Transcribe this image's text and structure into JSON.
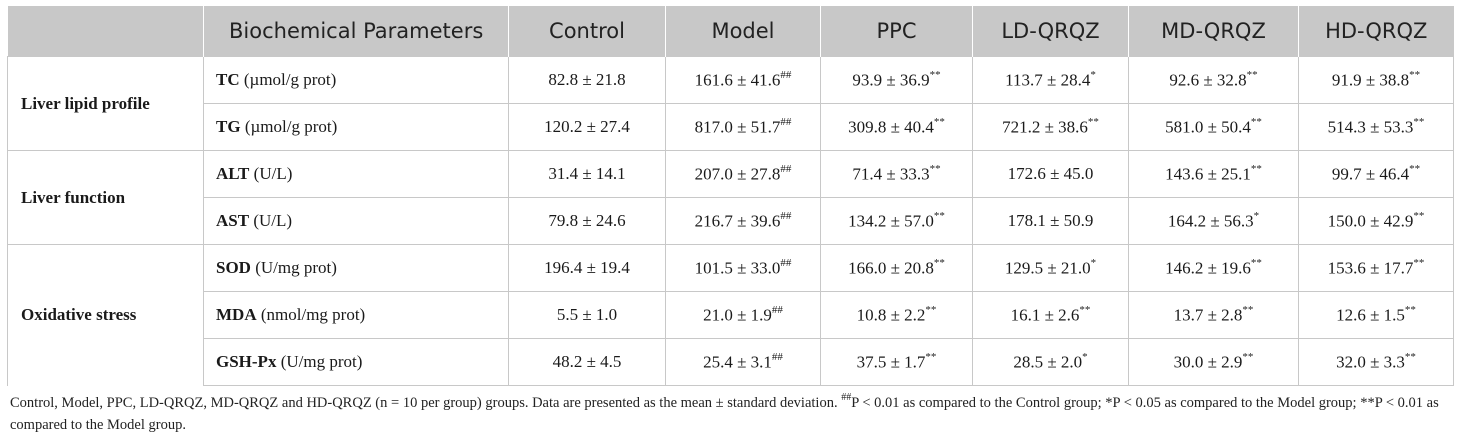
{
  "table": {
    "header": {
      "group": "",
      "parameter": "Biochemical Parameters",
      "columns": [
        "Control",
        "Model",
        "PPC",
        "LD-QRQZ",
        "MD-QRQZ",
        "HD-QRQZ"
      ]
    },
    "groups": [
      {
        "label": "Liver lipid profile",
        "rows": [
          {
            "name": "TC",
            "unit": "(µmol/g prot)",
            "cells": [
              {
                "v": "82.8 ± 21.8",
                "s": ""
              },
              {
                "v": "161.6 ± 41.6",
                "s": "##"
              },
              {
                "v": "93.9 ± 36.9",
                "s": "**"
              },
              {
                "v": "113.7 ± 28.4",
                "s": "*"
              },
              {
                "v": "92.6 ± 32.8",
                "s": "**"
              },
              {
                "v": "91.9 ± 38.8",
                "s": "**"
              }
            ]
          },
          {
            "name": "TG",
            "unit": "(µmol/g prot)",
            "cells": [
              {
                "v": "120.2 ± 27.4",
                "s": ""
              },
              {
                "v": "817.0 ± 51.7",
                "s": "##"
              },
              {
                "v": "309.8 ± 40.4",
                "s": "**"
              },
              {
                "v": "721.2 ± 38.6",
                "s": "**"
              },
              {
                "v": "581.0 ± 50.4",
                "s": "**"
              },
              {
                "v": "514.3 ± 53.3",
                "s": "**"
              }
            ]
          }
        ]
      },
      {
        "label": "Liver function",
        "rows": [
          {
            "name": "ALT",
            "unit": "(U/L)",
            "cells": [
              {
                "v": "31.4 ± 14.1",
                "s": ""
              },
              {
                "v": "207.0 ± 27.8",
                "s": "##"
              },
              {
                "v": "71.4 ± 33.3",
                "s": "**"
              },
              {
                "v": "172.6 ± 45.0",
                "s": ""
              },
              {
                "v": "143.6 ± 25.1",
                "s": "**"
              },
              {
                "v": "99.7 ± 46.4",
                "s": "**"
              }
            ]
          },
          {
            "name": "AST",
            "unit": "(U/L)",
            "cells": [
              {
                "v": "79.8 ± 24.6",
                "s": ""
              },
              {
                "v": "216.7 ± 39.6",
                "s": "##"
              },
              {
                "v": "134.2 ± 57.0",
                "s": "**"
              },
              {
                "v": "178.1 ± 50.9",
                "s": ""
              },
              {
                "v": "164.2 ± 56.3",
                "s": "*"
              },
              {
                "v": "150.0 ± 42.9",
                "s": "**"
              }
            ]
          }
        ]
      },
      {
        "label": "Oxidative stress",
        "rows": [
          {
            "name": "SOD",
            "unit": "(U/mg prot)",
            "cells": [
              {
                "v": "196.4 ± 19.4",
                "s": ""
              },
              {
                "v": "101.5 ± 33.0",
                "s": "##"
              },
              {
                "v": "166.0 ± 20.8",
                "s": "**"
              },
              {
                "v": "129.5 ± 21.0",
                "s": "*"
              },
              {
                "v": "146.2 ± 19.6",
                "s": "**"
              },
              {
                "v": "153.6 ± 17.7",
                "s": "**"
              }
            ]
          },
          {
            "name": "MDA",
            "unit": "(nmol/mg prot)",
            "cells": [
              {
                "v": "5.5 ± 1.0",
                "s": ""
              },
              {
                "v": "21.0 ± 1.9",
                "s": "##"
              },
              {
                "v": "10.8 ± 2.2",
                "s": "**"
              },
              {
                "v": "16.1 ± 2.6",
                "s": "**"
              },
              {
                "v": "13.7 ± 2.8",
                "s": "**"
              },
              {
                "v": "12.6 ± 1.5",
                "s": "**"
              }
            ]
          },
          {
            "name": "GSH-Px",
            "unit": "(U/mg prot)",
            "cells": [
              {
                "v": "48.2 ± 4.5",
                "s": ""
              },
              {
                "v": "25.4 ± 3.1",
                "s": "##"
              },
              {
                "v": "37.5 ± 1.7",
                "s": "**"
              },
              {
                "v": "28.5 ± 2.0",
                "s": "*"
              },
              {
                "v": "30.0 ± 2.9",
                "s": "**"
              },
              {
                "v": "32.0 ± 3.3",
                "s": "**"
              }
            ]
          }
        ]
      }
    ]
  },
  "footnote": {
    "part1": "Control, Model, PPC, LD-QRQZ, MD-QRQZ and HD-QRQZ (n = 10 per group) groups. Data are presented as the mean ± standard deviation. ",
    "sup1": "##",
    "part2": "P < 0.01 as compared to the Control group; *P < 0.05 as compared to the Model group; **P < 0.01 as compared to the Model group."
  }
}
